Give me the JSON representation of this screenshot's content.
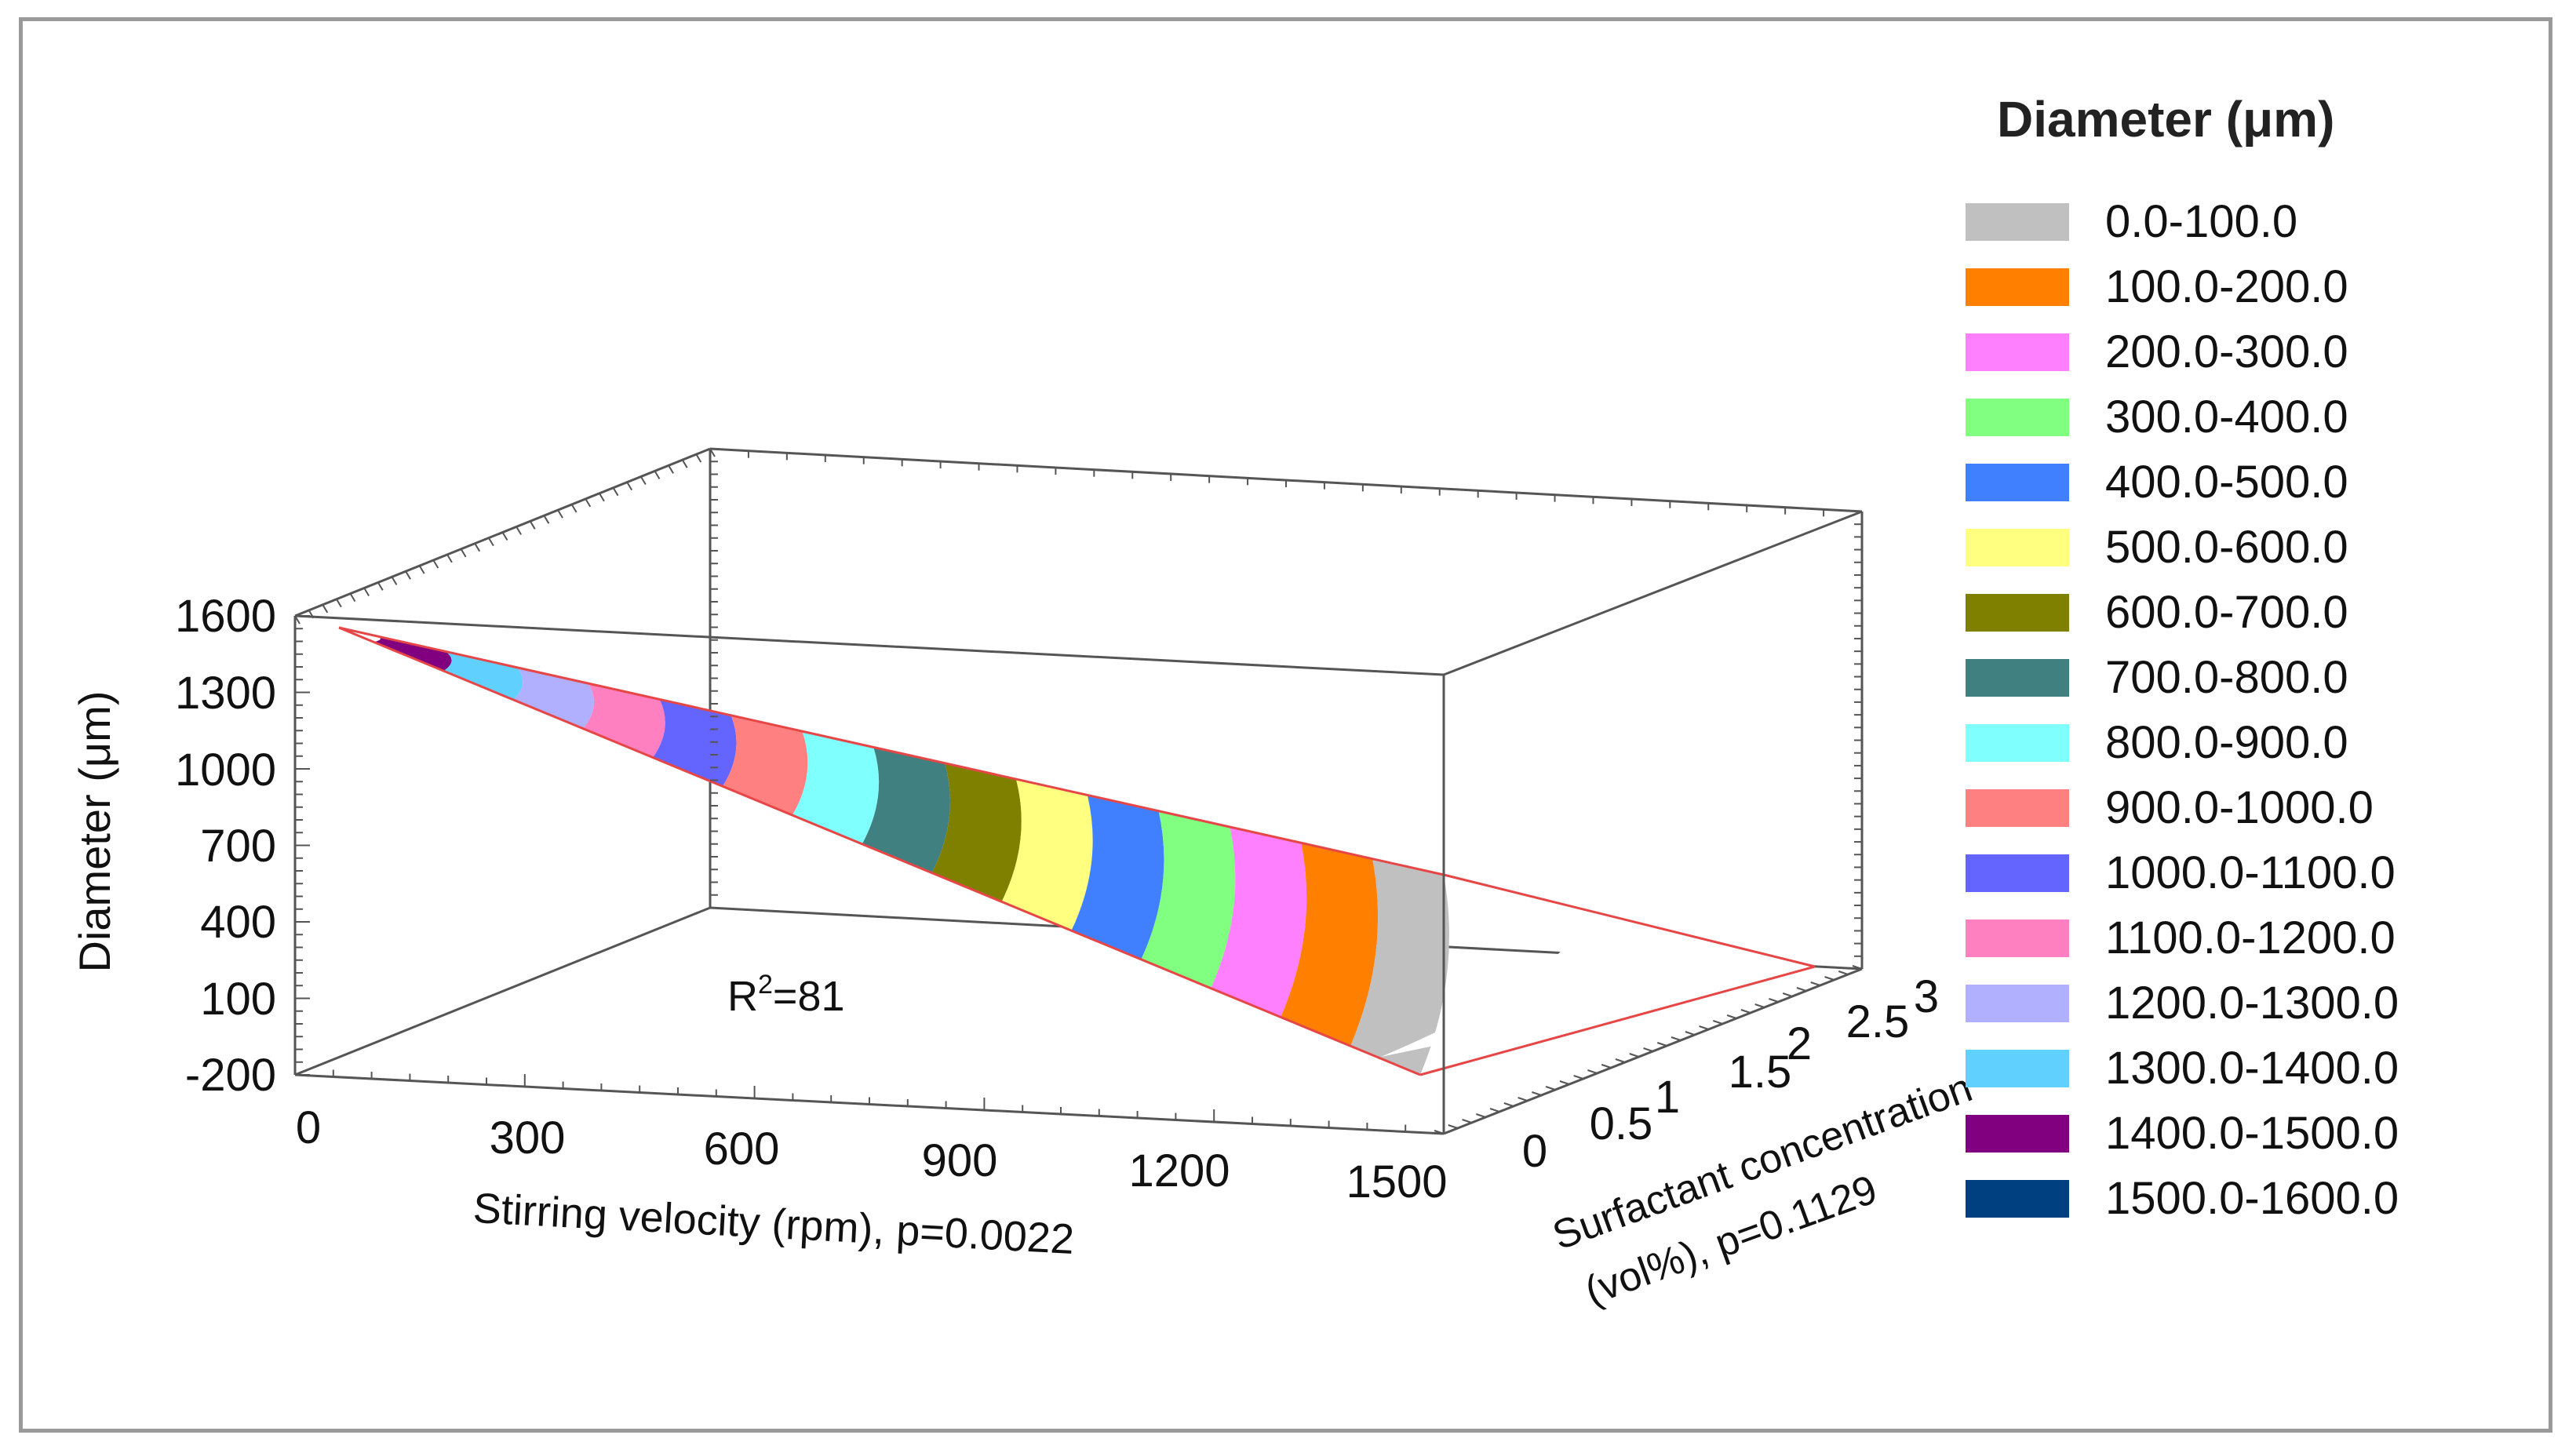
{
  "chart_data": {
    "type": "surface3d",
    "title": "",
    "x_axis": {
      "label": "Stirring velocity (rpm), p=0.0022",
      "ticks": [
        "0",
        "300",
        "600",
        "900",
        "1200",
        "1500"
      ],
      "range": [
        0,
        1500
      ]
    },
    "y_axis": {
      "label": "Surfactant concentration (vol%), p=0.1129",
      "label_line1": "Surfactant concentration",
      "label_line2": "(vol%), p=0.1129",
      "ticks": [
        "0",
        "0.5",
        "1",
        "1.5",
        "2",
        "2.5",
        "3"
      ],
      "range": [
        0,
        3
      ]
    },
    "z_axis": {
      "label": "Diameter (μm)",
      "ticks": [
        "1600",
        "1300",
        "1000",
        "700",
        "400",
        "100",
        "-200"
      ],
      "range": [
        -200,
        1600
      ]
    },
    "annotation": {
      "text": "R",
      "sup": "2",
      "rest": "=81"
    },
    "surface_estimate": {
      "description": "Diameter decreases roughly linearly with stirring velocity; weak dependence on surfactant concentration",
      "diameter_at_0_rpm": 1550,
      "diameter_at_1500_rpm": 0,
      "surfactant_range": [
        0,
        3
      ]
    },
    "legend": {
      "title": "Diameter (μm)",
      "items": [
        {
          "label": "0.0-100.0",
          "color": "#c0c0c0"
        },
        {
          "label": "100.0-200.0",
          "color": "#ff8000"
        },
        {
          "label": "200.0-300.0",
          "color": "#ff80ff"
        },
        {
          "label": "300.0-400.0",
          "color": "#80ff80"
        },
        {
          "label": "400.0-500.0",
          "color": "#4080ff"
        },
        {
          "label": "500.0-600.0",
          "color": "#ffff80"
        },
        {
          "label": "600.0-700.0",
          "color": "#808000"
        },
        {
          "label": "700.0-800.0",
          "color": "#408080"
        },
        {
          "label": "800.0-900.0",
          "color": "#80ffff"
        },
        {
          "label": "900.0-1000.0",
          "color": "#ff8080"
        },
        {
          "label": "1000.0-1100.0",
          "color": "#6464ff"
        },
        {
          "label": "1100.0-1200.0",
          "color": "#ff80c0"
        },
        {
          "label": "1200.0-1300.0",
          "color": "#b0b0ff"
        },
        {
          "label": "1300.0-1400.0",
          "color": "#60d0ff"
        },
        {
          "label": "1400.0-1500.0",
          "color": "#800080"
        },
        {
          "label": "1500.0-1600.0",
          "color": "#004080"
        }
      ]
    }
  }
}
